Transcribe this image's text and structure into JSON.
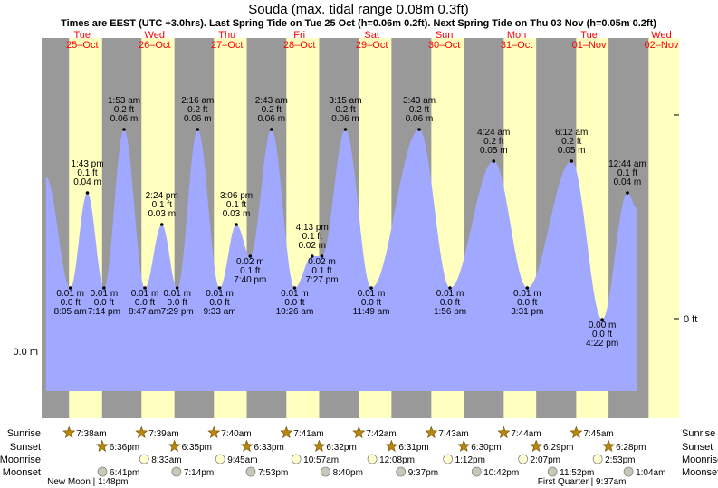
{
  "chart_data": {
    "type": "area",
    "title": "Souda (max. tidal range 0.08m 0.3ft)",
    "subtitle": "Times are EEST (UTC +3.0hrs). Last Spring Tide on Tue 25 Oct (h=0.06m 0.2ft). Next Spring Tide on Thu 03 Nov (h=0.05m 0.2ft)",
    "x_unit": "hours from 00:00 Tue 25 Oct",
    "xlim": [
      -1.44,
      209.85
    ],
    "ylim_m": [
      -0.02,
      0.075
    ],
    "axis_labels": {
      "left": "0.0 m",
      "right_zero": "0 ft"
    },
    "days": [
      {
        "dow": "Tue",
        "date": "25–Oct",
        "start": 0
      },
      {
        "dow": "Wed",
        "date": "26–Oct",
        "start": 24
      },
      {
        "dow": "Thu",
        "date": "27–Oct",
        "start": 48
      },
      {
        "dow": "Fri",
        "date": "28–Oct",
        "start": 72
      },
      {
        "dow": "Sat",
        "date": "29–Oct",
        "start": 96
      },
      {
        "dow": "Sun",
        "date": "30–Oct",
        "start": 120
      },
      {
        "dow": "Mon",
        "date": "31–Oct",
        "start": 144
      },
      {
        "dow": "Tue",
        "date": "01–Nov",
        "start": 168
      },
      {
        "dow": "Wed",
        "date": "02–Nov",
        "start": 192
      }
    ],
    "daylight": [
      [
        7.63,
        18.6
      ],
      [
        31.65,
        42.58
      ],
      [
        55.67,
        66.55
      ],
      [
        79.68,
        90.53
      ],
      [
        103.7,
        114.52
      ],
      [
        127.72,
        138.5
      ],
      [
        151.73,
        162.48
      ],
      [
        175.75,
        186.47
      ],
      [
        199.75,
        209.85
      ]
    ],
    "tides": [
      {
        "t": 0.0,
        "h": 0.045,
        "type": "start"
      },
      {
        "t": 8.08,
        "h": 0.01,
        "type": "low",
        "time": "8:05 am",
        "m": "0.01 m",
        "ft": "0.0 ft"
      },
      {
        "t": 13.72,
        "h": 0.04,
        "type": "high",
        "time": "1:43 pm",
        "m": "0.04 m",
        "ft": "0.1 ft"
      },
      {
        "t": 19.23,
        "h": 0.01,
        "type": "low",
        "time": "7:14 pm",
        "m": "0.01 m",
        "ft": "0.0 ft"
      },
      {
        "t": 25.88,
        "h": 0.06,
        "type": "high",
        "time": "1:53 am",
        "m": "0.06 m",
        "ft": "0.2 ft"
      },
      {
        "t": 32.78,
        "h": 0.01,
        "type": "low",
        "time": "8:47 am",
        "m": "0.01 m",
        "ft": "0.0 ft"
      },
      {
        "t": 38.4,
        "h": 0.03,
        "type": "high",
        "time": "2:24 pm",
        "m": "0.03 m",
        "ft": "0.1 ft"
      },
      {
        "t": 43.48,
        "h": 0.01,
        "type": "low",
        "time": "7:29 pm",
        "m": "0.01 m",
        "ft": "0.0 ft"
      },
      {
        "t": 50.27,
        "h": 0.06,
        "type": "high",
        "time": "2:16 am",
        "m": "0.06 m",
        "ft": "0.2 ft"
      },
      {
        "t": 57.55,
        "h": 0.01,
        "type": "low",
        "time": "9:33 am",
        "m": "0.01 m",
        "ft": "0.0 ft"
      },
      {
        "t": 63.1,
        "h": 0.03,
        "type": "high",
        "time": "3:06 pm",
        "m": "0.03 m",
        "ft": "0.1 ft"
      },
      {
        "t": 67.67,
        "h": 0.02,
        "type": "low",
        "time": "7:40 pm",
        "m": "0.02 m",
        "ft": "0.1 ft"
      },
      {
        "t": 74.72,
        "h": 0.06,
        "type": "high",
        "time": "2:43 am",
        "m": "0.06 m",
        "ft": "0.2 ft"
      },
      {
        "t": 82.43,
        "h": 0.01,
        "type": "low",
        "time": "10:26 am",
        "m": "0.01 m",
        "ft": "0.0 ft"
      },
      {
        "t": 88.22,
        "h": 0.02,
        "type": "high",
        "time": "4:13 pm",
        "m": "0.02 m",
        "ft": "0.1 ft"
      },
      {
        "t": 91.45,
        "h": 0.02,
        "type": "low",
        "time": "7:27 pm",
        "m": "0.02 m",
        "ft": "0.1 ft"
      },
      {
        "t": 99.25,
        "h": 0.06,
        "type": "high",
        "time": "3:15 am",
        "m": "0.06 m",
        "ft": "0.2 ft"
      },
      {
        "t": 107.82,
        "h": 0.01,
        "type": "low",
        "time": "11:49 am",
        "m": "0.01 m",
        "ft": "0.0 ft"
      },
      {
        "t": 123.72,
        "h": 0.06,
        "type": "high",
        "time": "3:43 am",
        "m": "0.06 m",
        "ft": "0.2 ft"
      },
      {
        "t": 133.93,
        "h": 0.01,
        "type": "low",
        "time": "1:56 pm",
        "m": "0.01 m",
        "ft": "0.0 ft"
      },
      {
        "t": 148.4,
        "h": 0.05,
        "type": "high",
        "time": "4:24 am",
        "m": "0.05 m",
        "ft": "0.2 ft"
      },
      {
        "t": 159.52,
        "h": 0.01,
        "type": "low",
        "time": "3:31 pm",
        "m": "0.01 m",
        "ft": "0.0 ft"
      },
      {
        "t": 174.2,
        "h": 0.05,
        "type": "high",
        "time": "6:12 am",
        "m": "0.05 m",
        "ft": "0.2 ft"
      },
      {
        "t": 184.37,
        "h": 0.0,
        "type": "low",
        "time": "4:22 pm",
        "m": "0.00 m",
        "ft": "0.0 ft"
      },
      {
        "t": 192.73,
        "h": 0.04,
        "type": "high",
        "time": "12:44 am",
        "m": "0.04 m",
        "ft": "0.1 ft"
      },
      {
        "t": 196.0,
        "h": 0.035,
        "type": "end"
      }
    ],
    "astro_rows": [
      "Sunrise",
      "Sunset",
      "Moonrise",
      "Moonset"
    ],
    "astro_events": [
      {
        "row": "Sunrise",
        "t": 7.63,
        "text": "7:38am"
      },
      {
        "row": "Sunrise",
        "t": 31.65,
        "text": "7:39am"
      },
      {
        "row": "Sunrise",
        "t": 55.67,
        "text": "7:40am"
      },
      {
        "row": "Sunrise",
        "t": 79.68,
        "text": "7:41am"
      },
      {
        "row": "Sunrise",
        "t": 103.7,
        "text": "7:42am"
      },
      {
        "row": "Sunrise",
        "t": 127.72,
        "text": "7:43am"
      },
      {
        "row": "Sunrise",
        "t": 151.73,
        "text": "7:44am"
      },
      {
        "row": "Sunrise",
        "t": 175.75,
        "text": "7:45am"
      },
      {
        "row": "Sunset",
        "t": 18.6,
        "text": "6:36pm"
      },
      {
        "row": "Sunset",
        "t": 42.58,
        "text": "6:35pm"
      },
      {
        "row": "Sunset",
        "t": 66.55,
        "text": "6:33pm"
      },
      {
        "row": "Sunset",
        "t": 90.53,
        "text": "6:32pm"
      },
      {
        "row": "Sunset",
        "t": 114.52,
        "text": "6:31pm"
      },
      {
        "row": "Sunset",
        "t": 138.5,
        "text": "6:30pm"
      },
      {
        "row": "Sunset",
        "t": 162.48,
        "text": "6:29pm"
      },
      {
        "row": "Sunset",
        "t": 186.47,
        "text": "6:28pm"
      },
      {
        "row": "Moonrise",
        "t": 32.55,
        "text": "8:33am"
      },
      {
        "row": "Moonrise",
        "t": 57.75,
        "text": "9:45am"
      },
      {
        "row": "Moonrise",
        "t": 82.95,
        "text": "10:57am"
      },
      {
        "row": "Moonrise",
        "t": 108.13,
        "text": "12:08pm"
      },
      {
        "row": "Moonrise",
        "t": 133.2,
        "text": "1:12pm"
      },
      {
        "row": "Moonrise",
        "t": 158.12,
        "text": "2:07pm"
      },
      {
        "row": "Moonrise",
        "t": 182.88,
        "text": "2:53pm"
      },
      {
        "row": "Moonset",
        "t": 18.68,
        "text": "6:41pm"
      },
      {
        "row": "Moonset",
        "t": 43.23,
        "text": "7:14pm"
      },
      {
        "row": "Moonset",
        "t": 67.88,
        "text": "7:53pm"
      },
      {
        "row": "Moonset",
        "t": 92.67,
        "text": "8:40pm"
      },
      {
        "row": "Moonset",
        "t": 117.62,
        "text": "9:37pm"
      },
      {
        "row": "Moonset",
        "t": 142.7,
        "text": "10:42pm"
      },
      {
        "row": "Moonset",
        "t": 167.87,
        "text": "11:52pm"
      },
      {
        "row": "Moonset",
        "t": 193.07,
        "text": "1:04am"
      }
    ],
    "moon_phases": [
      {
        "t": 13.8,
        "text": "New Moon | 1:48pm"
      },
      {
        "t": 177.62,
        "text": "First Quarter | 9:37am"
      }
    ]
  },
  "colors": {
    "night": "#999999",
    "day": "#ffffc0",
    "water": "#a0a8ff",
    "date_red": "#ff0000",
    "sun_star": "#b8860b",
    "moon_fill": "#c8c8b8",
    "moonrise_fill": "#ffffd0"
  }
}
